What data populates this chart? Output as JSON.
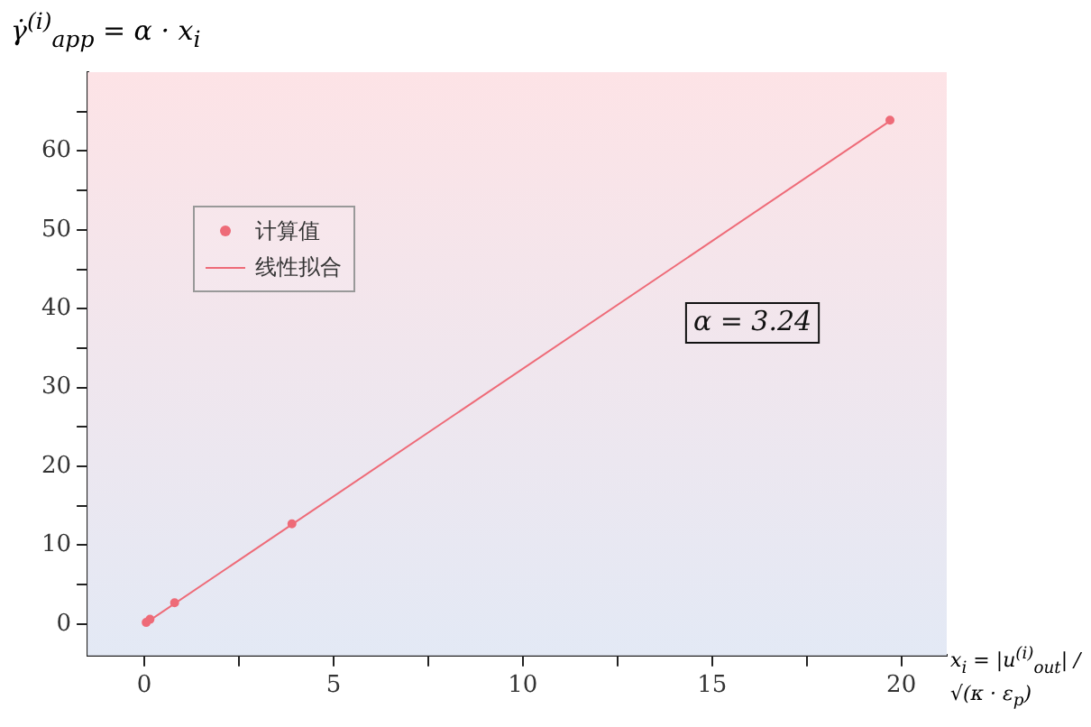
{
  "chart_data": {
    "type": "scatter",
    "xlabel": "x$_{i}$ = |u$^{(i)}$$_{out}$| / √(κ · ε$_{p}$)",
    "ylabel": "γ̇$^{(i)}$$_{app}$ = α · x$_{i}$",
    "annotations": [
      "α = 3.24"
    ],
    "xlim": [
      -1.5,
      21.2
    ],
    "xticks": [
      0,
      {
        "value": 2.5,
        "label": null
      },
      5,
      {
        "value": 7.5,
        "label": null
      },
      10,
      {
        "value": 12.5,
        "label": null
      },
      15,
      {
        "value": 17.5,
        "label": null
      },
      20
    ],
    "ylim": [
      -4,
      70
    ],
    "yticks": [
      0,
      {
        "value": 5,
        "label": null
      },
      10,
      {
        "value": 15,
        "label": null
      },
      20,
      {
        "value": 25,
        "label": null
      },
      30,
      {
        "value": 35,
        "label": null
      },
      40,
      {
        "value": 45,
        "label": null
      },
      50,
      {
        "value": 55,
        "label": null
      },
      60,
      {
        "value": 65,
        "label": null
      }
    ],
    "series": [
      {
        "name": "计算值",
        "marker": "circle",
        "color": "#ee6b78",
        "x": [
          0.05,
          0.15,
          0.8,
          3.9,
          19.7
        ],
        "values": [
          0.2,
          0.6,
          2.7,
          12.7,
          63.9
        ]
      },
      {
        "name": "线性拟合",
        "type": "line",
        "color": "#ee6b78",
        "x": [
          0,
          19.7
        ],
        "values": [
          0,
          63.8
        ]
      }
    ],
    "legend": "top left",
    "line_style": "solid"
  }
}
